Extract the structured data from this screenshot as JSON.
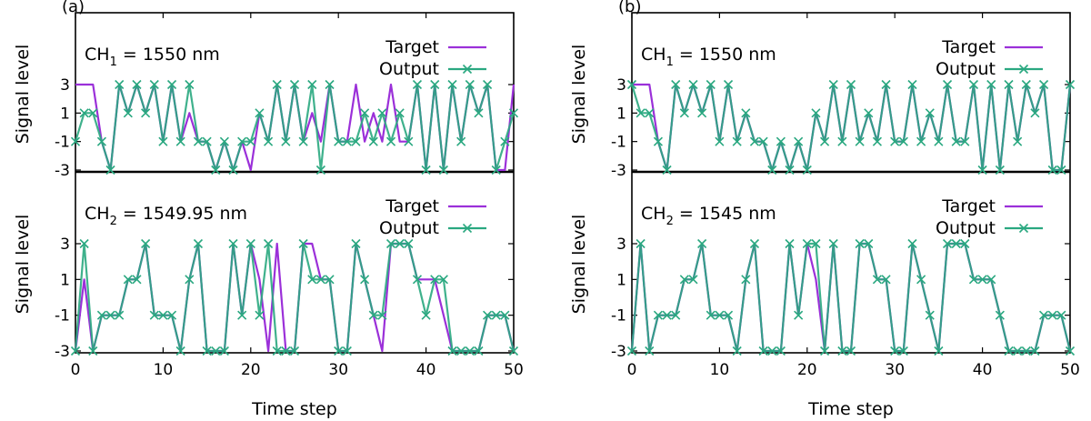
{
  "chart_data": [
    {
      "panel_label": "(a)",
      "xlabel": "Time step",
      "xlim": [
        0,
        50
      ],
      "xticks": [
        0,
        10,
        20,
        30,
        40,
        50
      ],
      "subplots": [
        {
          "annotation": "CH1 = 1550 nm",
          "annotation_base": "CH",
          "annotation_sub": "1",
          "annotation_rest": " = 1550 nm",
          "ylabel": "Signal level",
          "ylim": [
            -3,
            3
          ],
          "yticks": [
            -3,
            -1,
            1,
            3
          ],
          "ytick_labels": [
            "-3",
            "-1",
            "1",
            "3"
          ],
          "legend": [
            "Target",
            "Output"
          ],
          "series": [
            {
              "name": "Target",
              "color": "#9b30d9",
              "values": [
                3,
                3,
                3,
                -1,
                -3,
                3,
                1,
                3,
                1,
                3,
                -1,
                3,
                -1,
                1,
                -1,
                -1,
                -3,
                -1,
                -3,
                -1,
                -3,
                1,
                -1,
                3,
                -1,
                3,
                -1,
                1,
                -1,
                3,
                -1,
                -1,
                3,
                -1,
                1,
                -1,
                3,
                -1,
                -1,
                3,
                -3,
                3,
                -3,
                3,
                -1,
                3,
                1,
                3,
                -3,
                -3,
                3
              ]
            },
            {
              "name": "Output",
              "color": "#2aa880",
              "values": [
                -1,
                1,
                1,
                -1,
                -3,
                3,
                1,
                3,
                1,
                3,
                -1,
                3,
                -1,
                3,
                -1,
                -1,
                -3,
                -1,
                -3,
                -1,
                -1,
                1,
                -1,
                3,
                -1,
                3,
                -1,
                3,
                -3,
                3,
                -1,
                -1,
                -1,
                1,
                -1,
                1,
                -1,
                1,
                -1,
                3,
                -3,
                3,
                -3,
                3,
                -1,
                3,
                1,
                3,
                -3,
                -1,
                1
              ]
            }
          ]
        },
        {
          "annotation": "CH2 = 1549.95 nm",
          "annotation_base": "CH",
          "annotation_sub": "2",
          "annotation_rest": " = 1549.95 nm",
          "ylabel": "Signal level",
          "ylim": [
            -3,
            3
          ],
          "yticks": [
            -3,
            -1,
            1,
            3
          ],
          "ytick_labels": [
            "-3",
            "-1",
            "1",
            "3"
          ],
          "legend": [
            "Target",
            "Output"
          ],
          "series": [
            {
              "name": "Target",
              "color": "#9b30d9",
              "values": [
                -3,
                1,
                -3,
                -1,
                -1,
                -1,
                1,
                1,
                3,
                -1,
                -1,
                -1,
                -3,
                1,
                3,
                -3,
                -3,
                -3,
                3,
                -1,
                3,
                1,
                -3,
                3,
                -3,
                -3,
                3,
                3,
                1,
                1,
                -3,
                -3,
                3,
                1,
                -1,
                -3,
                3,
                3,
                3,
                1,
                1,
                1,
                -1,
                -3,
                -3,
                -3,
                -3,
                -1,
                -1,
                -1,
                -3
              ]
            },
            {
              "name": "Output",
              "color": "#2aa880",
              "values": [
                -3,
                3,
                -3,
                -1,
                -1,
                -1,
                1,
                1,
                3,
                -1,
                -1,
                -1,
                -3,
                1,
                3,
                -3,
                -3,
                -3,
                3,
                -1,
                3,
                -1,
                3,
                -3,
                -3,
                -3,
                3,
                1,
                1,
                1,
                -3,
                -3,
                3,
                1,
                -1,
                -1,
                3,
                3,
                3,
                1,
                -1,
                1,
                1,
                -3,
                -3,
                -3,
                -3,
                -1,
                -1,
                -1,
                -3
              ]
            }
          ]
        }
      ]
    },
    {
      "panel_label": "(b)",
      "xlabel": "Time step",
      "xlim": [
        0,
        50
      ],
      "xticks": [
        0,
        10,
        20,
        30,
        40,
        50
      ],
      "subplots": [
        {
          "annotation": "CH1 = 1550 nm",
          "annotation_base": "CH",
          "annotation_sub": "1",
          "annotation_rest": " = 1550 nm",
          "ylabel": "Signal level",
          "ylim": [
            -3,
            3
          ],
          "yticks": [
            -3,
            -1,
            1,
            3
          ],
          "ytick_labels": [
            "-3",
            "-1",
            "1",
            "3"
          ],
          "legend": [
            "Target",
            "Output"
          ],
          "series": [
            {
              "name": "Target",
              "color": "#9b30d9",
              "values": [
                3,
                3,
                3,
                -1,
                -3,
                3,
                1,
                3,
                1,
                3,
                -1,
                3,
                -1,
                1,
                -1,
                -1,
                -3,
                -1,
                -3,
                -1,
                -3,
                1,
                -1,
                3,
                -1,
                3,
                -1,
                1,
                -1,
                3,
                -1,
                -1,
                3,
                -1,
                1,
                -1,
                3,
                -1,
                -1,
                3,
                -3,
                3,
                -3,
                3,
                -1,
                3,
                1,
                3,
                -3,
                -3,
                3
              ]
            },
            {
              "name": "Output",
              "color": "#2aa880",
              "values": [
                3,
                1,
                1,
                -1,
                -3,
                3,
                1,
                3,
                1,
                3,
                -1,
                3,
                -1,
                1,
                -1,
                -1,
                -3,
                -1,
                -3,
                -1,
                -3,
                1,
                -1,
                3,
                -1,
                3,
                -1,
                1,
                -1,
                3,
                -1,
                -1,
                3,
                -1,
                1,
                -1,
                3,
                -1,
                -1,
                3,
                -3,
                3,
                -3,
                3,
                -1,
                3,
                1,
                3,
                -3,
                -3,
                3
              ]
            }
          ]
        },
        {
          "annotation": "CH2 = 1545 nm",
          "annotation_base": "CH",
          "annotation_sub": "2",
          "annotation_rest": " = 1545 nm",
          "ylabel": "Signal level",
          "ylim": [
            -3,
            3
          ],
          "yticks": [
            -3,
            -1,
            1,
            3
          ],
          "ytick_labels": [
            "-3",
            "-1",
            "1",
            "3"
          ],
          "legend": [
            "Target",
            "Output"
          ],
          "series": [
            {
              "name": "Target",
              "color": "#9b30d9",
              "values": [
                -3,
                3,
                -3,
                -1,
                -1,
                -1,
                1,
                1,
                3,
                -1,
                -1,
                -1,
                -3,
                1,
                3,
                -3,
                -3,
                -3,
                3,
                -1,
                3,
                1,
                -3,
                3,
                -3,
                -3,
                3,
                3,
                1,
                1,
                -3,
                -3,
                3,
                1,
                -1,
                -3,
                3,
                3,
                3,
                1,
                1,
                1,
                -1,
                -3,
                -3,
                -3,
                -3,
                -1,
                -1,
                -1,
                -3
              ]
            },
            {
              "name": "Output",
              "color": "#2aa880",
              "values": [
                -3,
                3,
                -3,
                -1,
                -1,
                -1,
                1,
                1,
                3,
                -1,
                -1,
                -1,
                -3,
                1,
                3,
                -3,
                -3,
                -3,
                3,
                -1,
                3,
                3,
                -3,
                3,
                -3,
                -3,
                3,
                3,
                1,
                1,
                -3,
                -3,
                3,
                1,
                -1,
                -3,
                3,
                3,
                3,
                1,
                1,
                1,
                -1,
                -3,
                -3,
                -3,
                -3,
                -1,
                -1,
                -1,
                -3
              ]
            }
          ]
        }
      ]
    }
  ]
}
